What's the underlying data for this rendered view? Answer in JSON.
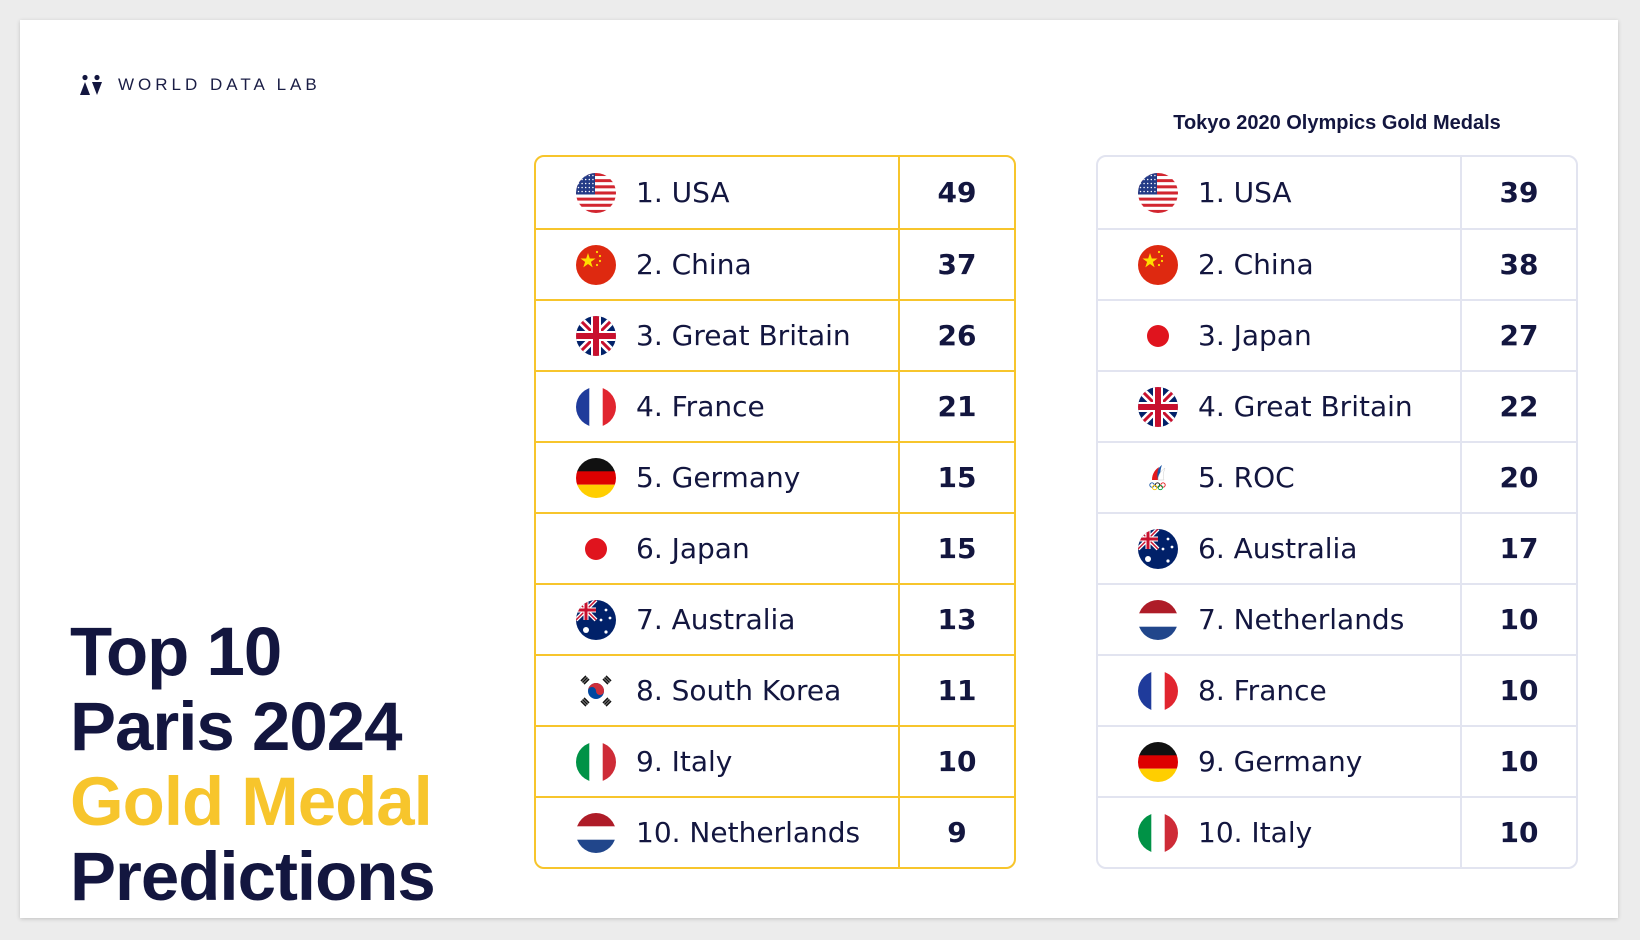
{
  "brand": {
    "name": "WORLD DATA LAB"
  },
  "headline": {
    "line1": "Top 10",
    "line2": "Paris 2024",
    "line3": "Gold Medal",
    "line4": "Predictions"
  },
  "colors": {
    "accent": "#f7c52c",
    "text": "#13163f",
    "table_border_right": "#e2e4f0"
  },
  "paris_predictions": [
    {
      "label": "1. USA",
      "value": "49",
      "flag": "usa-flag"
    },
    {
      "label": "2. China",
      "value": "37",
      "flag": "china-flag"
    },
    {
      "label": "3. Great Britain",
      "value": "26",
      "flag": "great-britain-flag"
    },
    {
      "label": "4. France",
      "value": "21",
      "flag": "france-flag"
    },
    {
      "label": "5. Germany",
      "value": "15",
      "flag": "germany-flag"
    },
    {
      "label": "6. Japan",
      "value": "15",
      "flag": "japan-flag"
    },
    {
      "label": "7. Australia",
      "value": "13",
      "flag": "australia-flag"
    },
    {
      "label": "8. South Korea",
      "value": "11",
      "flag": "south-korea-flag"
    },
    {
      "label": "9. Italy",
      "value": "10",
      "flag": "italy-flag"
    },
    {
      "label": "10. Netherlands",
      "value": "9",
      "flag": "netherlands-flag"
    }
  ],
  "tokyo": {
    "title": "Tokyo 2020 Olympics Gold Medals",
    "rows": [
      {
        "label": "1. USA",
        "value": "39",
        "flag": "usa-flag"
      },
      {
        "label": "2. China",
        "value": "38",
        "flag": "china-flag"
      },
      {
        "label": "3. Japan",
        "value": "27",
        "flag": "japan-flag"
      },
      {
        "label": "4. Great Britain",
        "value": "22",
        "flag": "great-britain-flag"
      },
      {
        "label": "5. ROC",
        "value": "20",
        "flag": "roc-flag"
      },
      {
        "label": "6. Australia",
        "value": "17",
        "flag": "australia-flag"
      },
      {
        "label": "7. Netherlands",
        "value": "10",
        "flag": "netherlands-flag"
      },
      {
        "label": "8. France",
        "value": "10",
        "flag": "france-flag"
      },
      {
        "label": "9. Germany",
        "value": "10",
        "flag": "germany-flag"
      },
      {
        "label": "10. Italy",
        "value": "10",
        "flag": "italy-flag"
      }
    ]
  }
}
